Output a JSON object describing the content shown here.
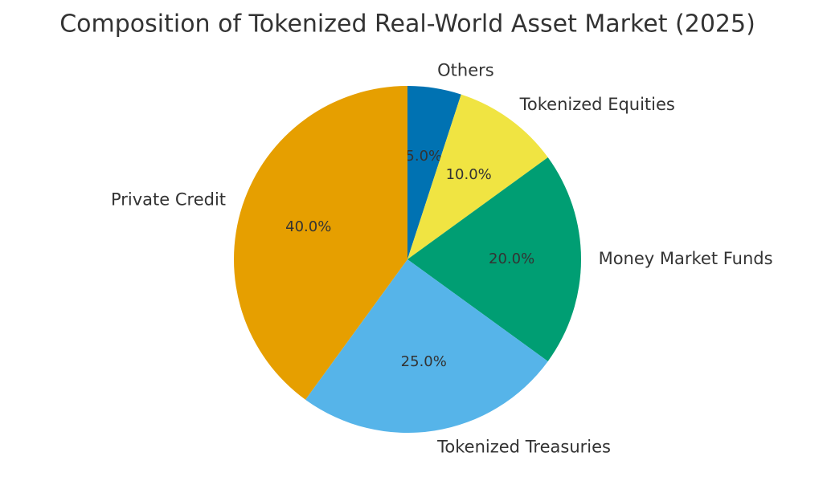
{
  "chart_data": {
    "type": "pie",
    "title": "Composition of Tokenized Real-World Asset Market (2025)",
    "categories": [
      "Others",
      "Tokenized Equities",
      "Money Market Funds",
      "Tokenized Treasuries",
      "Private Credit"
    ],
    "values": [
      5,
      10,
      20,
      25,
      40
    ],
    "value_labels": [
      "5.0%",
      "10.0%",
      "20.0%",
      "25.0%",
      "40.0%"
    ],
    "colors": [
      "#0072b2",
      "#f0e442",
      "#009e73",
      "#56b4e9",
      "#e69f00"
    ]
  }
}
